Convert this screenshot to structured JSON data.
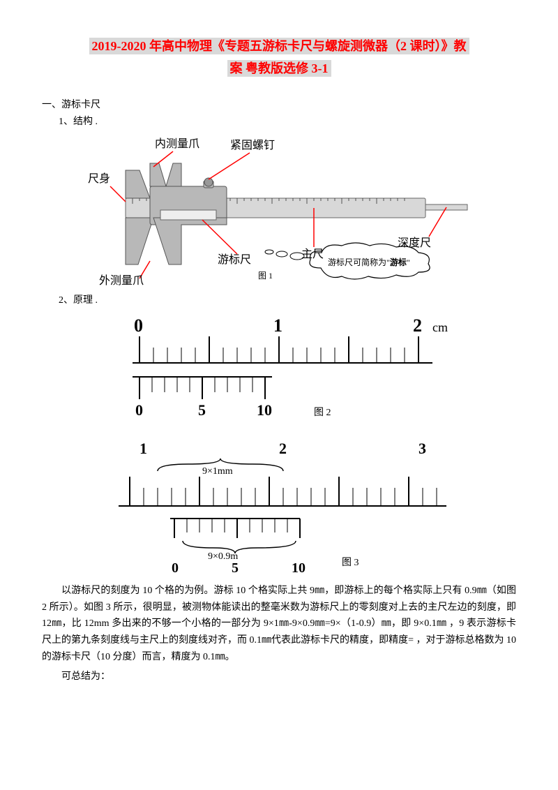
{
  "title": {
    "line1": "2019-2020 年高中物理《专题五游标卡尺与螺旋测微器（2 课时）》教",
    "line2": "案 粤教版选修 3-1"
  },
  "sections": {
    "s1": "一、游标卡尺",
    "s1_1": "1、结构 .",
    "s1_2": "2、原理 ."
  },
  "caliper": {
    "labels": {
      "body": "尺身",
      "inner_jaw": "内测量爪",
      "lock_screw": "紧固螺钉",
      "vernier": "游标尺",
      "main_scale": "主尺",
      "depth": "深度尺",
      "outer_jaw": "外测量爪",
      "fig": "图 1"
    },
    "cloud": {
      "prefix": "游标尺可简称为\"",
      "emph": "游标",
      "suffix": "\""
    },
    "colors": {
      "leader": "#ff0000",
      "body_fill": "#d8d8d8",
      "body_stroke": "#666666"
    }
  },
  "ruler2": {
    "main_labels": [
      "0",
      "1",
      "2"
    ],
    "unit": "cm",
    "vernier_labels": [
      "0",
      "5",
      "10"
    ],
    "fig": "图 2"
  },
  "ruler3": {
    "main_labels": [
      "1",
      "2",
      "3"
    ],
    "top_annot": "9×1mm",
    "bottom_annot": "9×0.9m",
    "vernier_labels": [
      "0",
      "5",
      "10"
    ],
    "fig": "图 3"
  },
  "paragraph": "以游标尺的刻度为 10 个格的为例。游标 10 个格实际上共 9㎜，即游标上的每个格实际上只有 0.9㎜（如图 2 所示）。如图 3 所示，很明显，被测物体能读出的整毫米数为游标尺上的零刻度对上去的主尺左边的刻度，即 12㎜，比 12mm 多出来的不够一个小格的一部分为 9×1㎜-9×0.9㎜=9×（1-0.9）㎜，即 9×0.1㎜ ，9 表示游标卡尺上的第九条刻度线与主尺上的刻度线对齐，而 0.1㎜代表此游标卡尺的精度，即精度= ，对于游标总格数为 10 的游标卡尺（10 分度）而言，精度为 0.1㎜。",
  "closing": "可总结为："
}
